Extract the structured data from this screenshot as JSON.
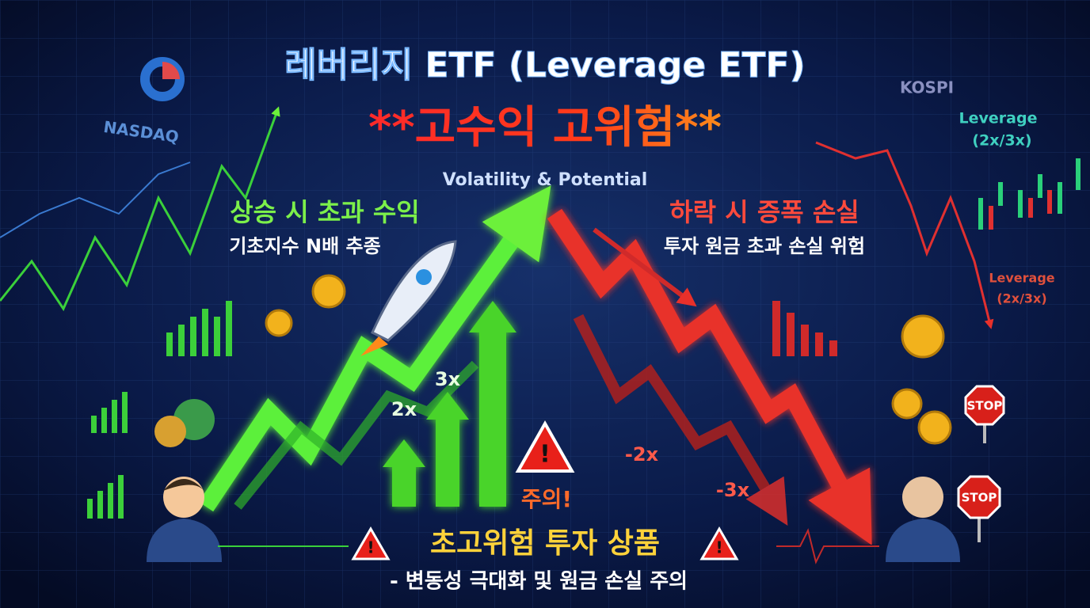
{
  "header": {
    "title": "레버리지 ETF (Leverage ETF)",
    "subtitle": "**고수익 고위험**",
    "caption": "Volatility & Potential"
  },
  "background_labels": {
    "nasdaq": "NASDAQ",
    "kospi": "KOSPI",
    "leverage_top": [
      "Leverage",
      "(2x/3x)"
    ],
    "leverage_mid": [
      "Leverage",
      "(2x/3x)"
    ]
  },
  "gain": {
    "heading": "상승 시 초과 수익",
    "sub": "기초지수 N배 추종"
  },
  "loss": {
    "heading": "하락 시 증폭 손실",
    "sub": "투자 원금 초과 손실 위험"
  },
  "multipliers": {
    "up3": "3x",
    "up2": "2x",
    "down2": "-2x",
    "down3": "-3x"
  },
  "warning": {
    "alert": "주의!",
    "title": "초고위험 투자 상품",
    "note": "- 변동성 극대화 및 원금 손실 주의"
  },
  "signs": [
    "STOP",
    "STOP"
  ]
}
